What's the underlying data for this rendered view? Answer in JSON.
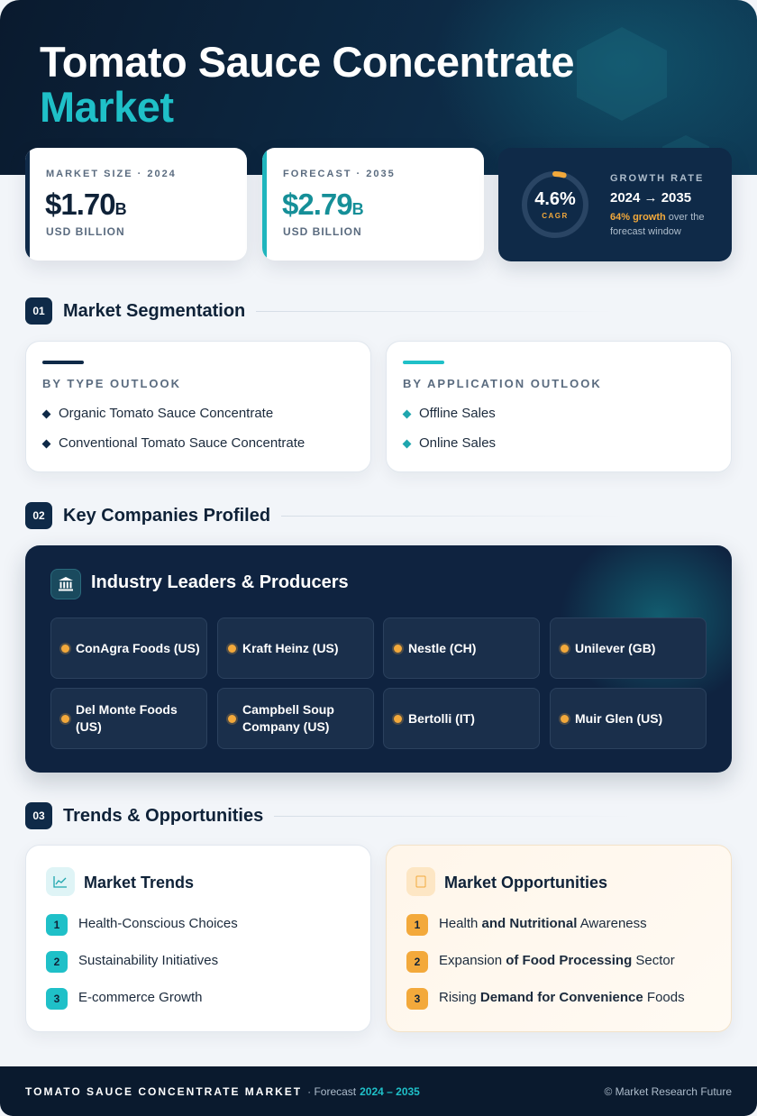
{
  "header": {
    "title_line1": "Tomato Sauce Concentrate",
    "title_line2": "Market"
  },
  "stats": {
    "market_size": {
      "label": "MARKET SIZE · 2024",
      "value": "$1.70",
      "unit": "B",
      "sub": "USD BILLION",
      "accent": "#0f2a48"
    },
    "forecast": {
      "label": "FORECAST · 2035",
      "value": "$2.79",
      "unit": "B",
      "sub": "USD BILLION",
      "accent": "#1fb5bd"
    }
  },
  "growth": {
    "cagr_value": "4.6%",
    "cagr_label": "CAGR",
    "cagr_progress": 0.046,
    "label": "GROWTH RATE",
    "years": "2024 → 2035",
    "highlight": "64% growth",
    "description": " over the forecast window"
  },
  "sections": {
    "s1": {
      "num": "01",
      "title": "Market Segmentation"
    },
    "s2": {
      "num": "02",
      "title": "Key Companies Profiled"
    },
    "s3": {
      "num": "03",
      "title": "Trends & Opportunities"
    }
  },
  "segmentation": {
    "type": {
      "heading": "BY TYPE OUTLOOK",
      "items": [
        "Organic Tomato Sauce Concentrate",
        "Conventional Tomato Sauce Concentrate"
      ]
    },
    "application": {
      "heading": "BY APPLICATION OUTLOOK",
      "items": [
        "Offline Sales",
        "Online Sales"
      ]
    }
  },
  "companies": {
    "title": "Industry Leaders & Producers",
    "icon": "bank-icon",
    "items": [
      "ConAgra Foods (US)",
      "Kraft Heinz (US)",
      "Nestle (CH)",
      "Unilever (GB)",
      "Del Monte Foods (US)",
      "Campbell Soup Company (US)",
      "Bertolli (IT)",
      "Muir Glen (US)"
    ]
  },
  "trends": {
    "title": "Market Trends",
    "icon": "chart-line-icon",
    "items": [
      {
        "n": "1",
        "text": "Health-Conscious Choices"
      },
      {
        "n": "2",
        "text": "Sustainability Initiatives"
      },
      {
        "n": "3",
        "text": "E-commerce Growth"
      }
    ]
  },
  "opportunities": {
    "title": "Market Opportunities",
    "icon": "lightbulb-icon",
    "items": [
      {
        "n": "1",
        "pre": "Health ",
        "bold": "and Nutritional",
        "post": " Awareness"
      },
      {
        "n": "2",
        "pre": "Expansion ",
        "bold": "of Food Processing",
        "post": " Sector"
      },
      {
        "n": "3",
        "pre": "Rising ",
        "bold": "Demand for Convenience",
        "post": " Foods"
      }
    ]
  },
  "footer": {
    "label": "TOMATO SAUCE CONCENTRATE MARKET",
    "sep": "· Forecast",
    "years": "2024 – 2035",
    "copyright": "© Market Research Future"
  },
  "colors": {
    "navy": "#0f2a48",
    "teal": "#1fc0c8",
    "amber": "#f3a93b"
  }
}
